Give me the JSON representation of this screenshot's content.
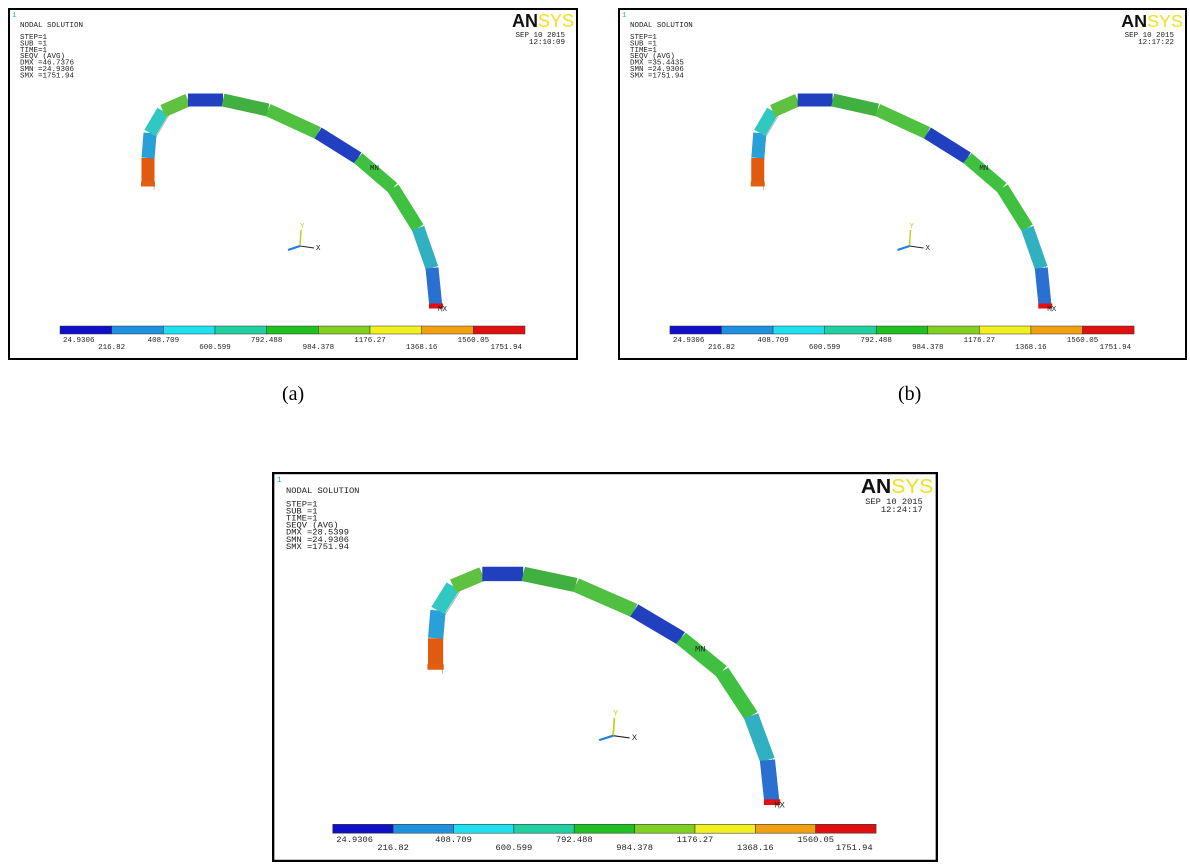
{
  "legend_colors": [
    "#1010c8",
    "#1e90e0",
    "#20e0f0",
    "#20d0a0",
    "#20c020",
    "#80d020",
    "#f0f020",
    "#f0a010",
    "#e01010"
  ],
  "panels": [
    {
      "window_number": "1",
      "title": "NODAL SOLUTION",
      "info": [
        "STEP=1",
        "SUB =1",
        "TIME=1",
        "SEQV      (AVG)",
        "DMX =46.7376",
        "SMN =24.9306",
        "SMX =1751.94"
      ],
      "date": "SEP 10 2015",
      "time": "12:10:09",
      "logo": {
        "dark": "AN",
        "light": "SYS"
      },
      "min_label": "MN",
      "max_label": "MX",
      "axis_x": "X",
      "axis_y": "Y",
      "legend": [
        "24.9306",
        "216.82",
        "408.709",
        "600.599",
        "792.488",
        "984.378",
        "1176.27",
        "1368.16",
        "1560.05",
        "1751.94"
      ],
      "caption": "(a)"
    },
    {
      "window_number": "1",
      "title": "NODAL SOLUTION",
      "info": [
        "STEP=1",
        "SUB =1",
        "TIME=1",
        "SEQV      (AVG)",
        "DMX =35.4435",
        "SMN =24.9306",
        "SMX =1751.94"
      ],
      "date": "SEP 10 2015",
      "time": "12:17:22",
      "logo": {
        "dark": "AN",
        "light": "SYS"
      },
      "min_label": "MN",
      "max_label": "MX",
      "axis_x": "X",
      "axis_y": "Y",
      "legend": [
        "24.9306",
        "216.82",
        "408.709",
        "600.599",
        "792.488",
        "984.378",
        "1176.27",
        "1368.16",
        "1560.05",
        "1751.94"
      ],
      "caption": "(b)"
    },
    {
      "window_number": "1",
      "title": "NODAL SOLUTION",
      "info": [
        "STEP=1",
        "SUB =1",
        "TIME=1",
        "SEQV      (AVG)",
        "DMX =28.5399",
        "SMN =24.9306",
        "SMX =1751.94"
      ],
      "date": "SEP 10 2015",
      "time": "12:24:17",
      "logo": {
        "dark": "AN",
        "light": "SYS"
      },
      "min_label": "MN",
      "max_label": "MX",
      "axis_x": "X",
      "axis_y": "Y",
      "legend": [
        "24.9306",
        "216.82",
        "408.709",
        "600.599",
        "792.488",
        "984.378",
        "1176.27",
        "1368.16",
        "1560.05",
        "1751.94"
      ]
    }
  ]
}
